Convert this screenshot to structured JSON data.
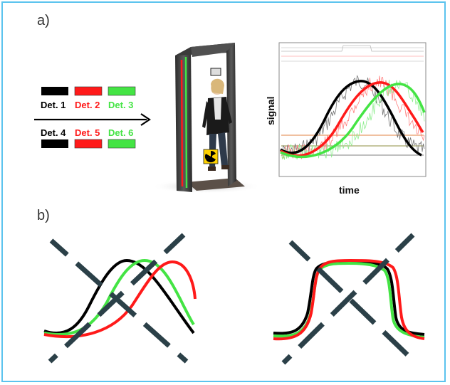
{
  "panel_a": {
    "label": "a)",
    "detectors_top": [
      {
        "label": "Det. 1",
        "color": "#000000"
      },
      {
        "label": "Det. 2",
        "color": "#ff1a1a"
      },
      {
        "label": "Det. 3",
        "color": "#44e444"
      }
    ],
    "detectors_bottom": [
      {
        "label": "Det. 4",
        "color": "#000000"
      },
      {
        "label": "Det. 5",
        "color": "#ff1a1a"
      },
      {
        "label": "Det. 6",
        "color": "#44e444"
      }
    ],
    "plot": {
      "ylabel": "signal",
      "xlabel": "time"
    },
    "portal_icon": "radiation-icon"
  },
  "panel_b": {
    "label": "b)"
  },
  "colors": {
    "border": "#5bc3ee",
    "black": "#000000",
    "red": "#ff1a1a",
    "green": "#44e444",
    "cross": "#2b4048"
  }
}
